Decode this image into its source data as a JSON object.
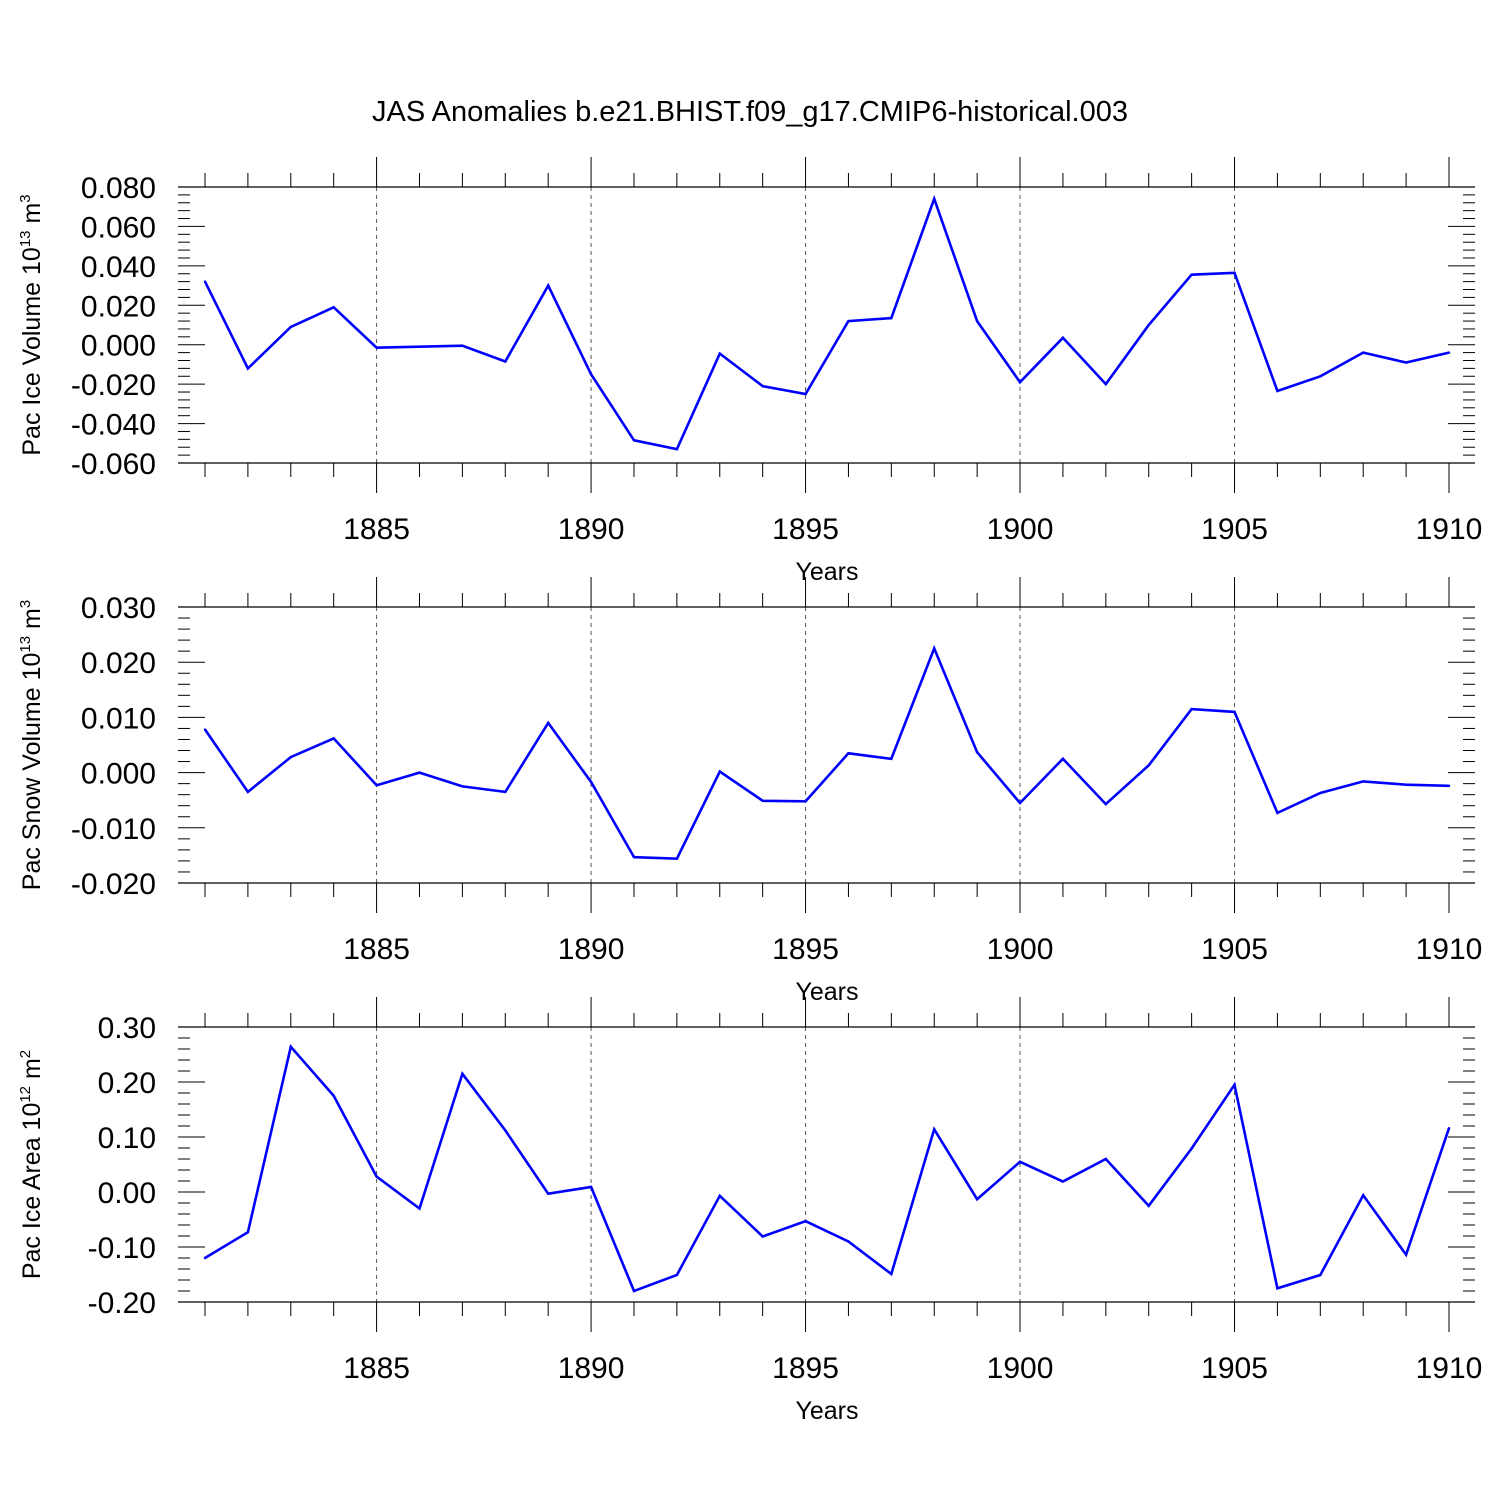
{
  "title": "JAS Anomalies b.e21.BHIST.f09_g17.CMIP6-historical.003",
  "colors": {
    "series": "#0000ff",
    "axis": "#000000",
    "grid": "#555555"
  },
  "chart_data": [
    {
      "type": "line",
      "ylabel_main": "Pac Ice Volume 10",
      "ylabel_exp": "13",
      "ylabel_unit": " m",
      "ylabel_unit_exp": "3",
      "xlabel": "Years",
      "xlim": [
        1881,
        1910
      ],
      "ylim": [
        -0.06,
        0.08
      ],
      "yticks": [
        -0.06,
        -0.04,
        -0.02,
        0.0,
        0.02,
        0.04,
        0.06,
        0.08
      ],
      "ytick_labels": [
        "-0.060",
        "-0.040",
        "-0.020",
        "0.000",
        "0.020",
        "0.040",
        "0.060",
        "0.080"
      ],
      "xticks": [
        1885,
        1890,
        1895,
        1900,
        1905,
        1910
      ],
      "xtick_labels": [
        "1885",
        "1890",
        "1895",
        "1900",
        "1905",
        "1910"
      ],
      "grid": "vertical dashed at labeled years",
      "x": [
        1881,
        1882,
        1883,
        1884,
        1885,
        1886,
        1887,
        1888,
        1889,
        1890,
        1891,
        1892,
        1893,
        1894,
        1895,
        1896,
        1897,
        1898,
        1899,
        1900,
        1901,
        1902,
        1903,
        1904,
        1905,
        1906,
        1907,
        1908,
        1909,
        1910
      ],
      "values": [
        0.032,
        -0.012,
        0.009,
        0.019,
        -0.0015,
        -0.001,
        -0.0005,
        -0.0085,
        0.03,
        -0.015,
        -0.0485,
        -0.053,
        -0.0045,
        -0.021,
        -0.025,
        0.012,
        0.0135,
        0.074,
        0.012,
        -0.019,
        0.0035,
        -0.02,
        0.01,
        0.0355,
        0.0365,
        -0.0235,
        -0.016,
        -0.004,
        -0.009,
        -0.004
      ]
    },
    {
      "type": "line",
      "ylabel_main": "Pac Snow Volume 10",
      "ylabel_exp": "13",
      "ylabel_unit": " m",
      "ylabel_unit_exp": "3",
      "xlabel": "Years",
      "xlim": [
        1881,
        1910
      ],
      "ylim": [
        -0.02,
        0.03
      ],
      "yticks": [
        -0.02,
        -0.01,
        0.0,
        0.01,
        0.02,
        0.03
      ],
      "ytick_labels": [
        "-0.020",
        "-0.010",
        "0.000",
        "0.010",
        "0.020",
        "0.030"
      ],
      "xticks": [
        1885,
        1890,
        1895,
        1900,
        1905,
        1910
      ],
      "xtick_labels": [
        "1885",
        "1890",
        "1895",
        "1900",
        "1905",
        "1910"
      ],
      "grid": "vertical dashed at labeled years",
      "x": [
        1881,
        1882,
        1883,
        1884,
        1885,
        1886,
        1887,
        1888,
        1889,
        1890,
        1891,
        1892,
        1893,
        1894,
        1895,
        1896,
        1897,
        1898,
        1899,
        1900,
        1901,
        1902,
        1903,
        1904,
        1905,
        1906,
        1907,
        1908,
        1909,
        1910
      ],
      "values": [
        0.0078,
        -0.0035,
        0.0028,
        0.0062,
        -0.0023,
        0.0,
        -0.0025,
        -0.0035,
        0.009,
        -0.0017,
        -0.0153,
        -0.0156,
        0.0002,
        -0.0051,
        -0.0052,
        0.0035,
        0.0025,
        0.0225,
        0.0037,
        -0.0055,
        0.0025,
        -0.0057,
        0.0013,
        0.0115,
        0.011,
        -0.0073,
        -0.0037,
        -0.0016,
        -0.0022,
        -0.0024
      ]
    },
    {
      "type": "line",
      "ylabel_main": "Pac Ice Area 10",
      "ylabel_exp": "12",
      "ylabel_unit": " m",
      "ylabel_unit_exp": "2",
      "xlabel": "Years",
      "xlim": [
        1881,
        1910
      ],
      "ylim": [
        -0.2,
        0.3
      ],
      "yticks": [
        -0.2,
        -0.1,
        0.0,
        0.1,
        0.2,
        0.3
      ],
      "ytick_labels": [
        "-0.20",
        "-0.10",
        "0.00",
        "0.10",
        "0.20",
        "0.30"
      ],
      "xticks": [
        1885,
        1890,
        1895,
        1900,
        1905,
        1910
      ],
      "xtick_labels": [
        "1885",
        "1890",
        "1895",
        "1900",
        "1905",
        "1910"
      ],
      "grid": "vertical dashed at labeled years",
      "x": [
        1881,
        1882,
        1883,
        1884,
        1885,
        1886,
        1887,
        1888,
        1889,
        1890,
        1891,
        1892,
        1893,
        1894,
        1895,
        1896,
        1897,
        1898,
        1899,
        1900,
        1901,
        1902,
        1903,
        1904,
        1905,
        1906,
        1907,
        1908,
        1909,
        1910
      ],
      "values": [
        -0.12,
        -0.073,
        0.264,
        0.175,
        0.028,
        -0.03,
        0.215,
        0.112,
        -0.003,
        0.009,
        -0.18,
        -0.151,
        -0.007,
        -0.081,
        -0.053,
        -0.09,
        -0.149,
        0.114,
        -0.013,
        0.055,
        0.019,
        0.06,
        -0.025,
        0.079,
        0.195,
        -0.175,
        -0.151,
        -0.006,
        -0.114,
        0.116
      ]
    }
  ]
}
